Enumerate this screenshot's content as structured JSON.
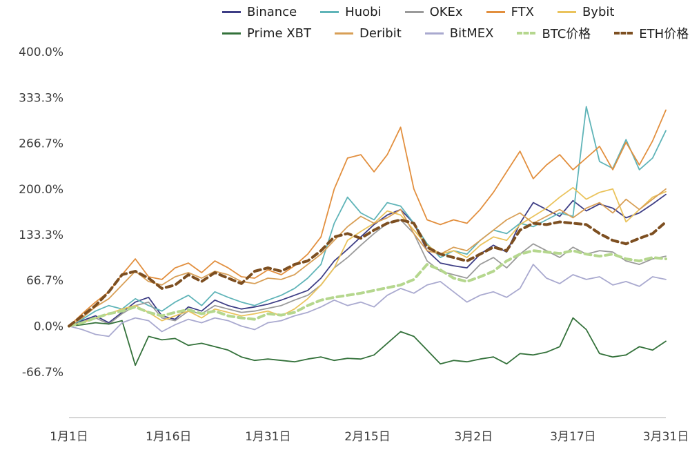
{
  "page": {
    "background": "#ffffff"
  },
  "chart_data": {
    "type": "line",
    "title": "",
    "xlabel": "",
    "ylabel": "",
    "grid": false,
    "legend_position": "top",
    "x_axis": {
      "tick_days": [
        0,
        15,
        30,
        45,
        61,
        76,
        90
      ],
      "tick_labels": [
        "1月1日",
        "1月16日",
        "1月31日",
        "2月15日",
        "3月2日",
        "3月17日",
        "3月31日"
      ],
      "xlim": [
        0,
        90
      ]
    },
    "y_axis": {
      "ticks": [
        400,
        333.3,
        266.7,
        200,
        133.3,
        66.7,
        0,
        -66.7
      ],
      "tick_labels": [
        "400.0%",
        "333.3%",
        "266.7%",
        "200.0%",
        "133.3%",
        "66.7%",
        "0.0%",
        "-66.7%"
      ],
      "ylim": [
        -133.3,
        400
      ],
      "unit": "%"
    },
    "x_days": [
      0,
      2,
      4,
      6,
      8,
      10,
      12,
      14,
      16,
      18,
      20,
      22,
      24,
      26,
      28,
      30,
      32,
      34,
      36,
      38,
      40,
      42,
      44,
      46,
      48,
      50,
      52,
      54,
      56,
      58,
      60,
      62,
      64,
      66,
      68,
      70,
      72,
      74,
      76,
      78,
      80,
      82,
      84,
      86,
      88,
      90
    ],
    "series": [
      {
        "name": "Binance",
        "color": "#3d3d85",
        "dashed": false,
        "values": [
          0,
          8,
          15,
          5,
          20,
          35,
          42,
          15,
          10,
          28,
          22,
          38,
          30,
          25,
          28,
          32,
          38,
          45,
          52,
          70,
          95,
          112,
          130,
          148,
          162,
          170,
          150,
          110,
          92,
          88,
          85,
          105,
          118,
          108,
          150,
          180,
          170,
          160,
          183,
          168,
          178,
          172,
          158,
          165,
          178,
          192
        ]
      },
      {
        "name": "Huobi",
        "color": "#5fb4b8",
        "dashed": false,
        "values": [
          0,
          10,
          22,
          30,
          25,
          40,
          30,
          22,
          35,
          45,
          30,
          50,
          42,
          35,
          30,
          38,
          45,
          55,
          70,
          90,
          150,
          188,
          165,
          155,
          180,
          175,
          150,
          120,
          100,
          110,
          105,
          125,
          140,
          135,
          150,
          145,
          155,
          165,
          160,
          320,
          240,
          230,
          272,
          228,
          245,
          285
        ]
      },
      {
        "name": "OKEx",
        "color": "#9a9a9a",
        "dashed": false,
        "values": [
          0,
          6,
          12,
          3,
          18,
          30,
          35,
          12,
          8,
          22,
          18,
          30,
          25,
          20,
          22,
          26,
          30,
          38,
          45,
          60,
          85,
          100,
          118,
          135,
          150,
          155,
          135,
          95,
          80,
          75,
          70,
          90,
          100,
          85,
          105,
          120,
          110,
          100,
          115,
          105,
          110,
          108,
          95,
          90,
          98,
          102
        ]
      },
      {
        "name": "FTX",
        "color": "#e28f3e",
        "dashed": false,
        "values": [
          0,
          18,
          35,
          50,
          75,
          98,
          72,
          68,
          85,
          92,
          78,
          95,
          85,
          72,
          70,
          82,
          75,
          88,
          105,
          130,
          200,
          245,
          250,
          225,
          250,
          290,
          200,
          155,
          148,
          155,
          150,
          170,
          195,
          225,
          255,
          215,
          235,
          250,
          228,
          245,
          262,
          228,
          268,
          235,
          270,
          315
        ]
      },
      {
        "name": "Bybit",
        "color": "#eac35c",
        "dashed": false,
        "values": [
          0,
          5,
          12,
          18,
          25,
          30,
          20,
          8,
          15,
          22,
          12,
          25,
          20,
          15,
          18,
          22,
          15,
          25,
          40,
          60,
          85,
          125,
          138,
          150,
          168,
          162,
          140,
          118,
          105,
          110,
          100,
          118,
          130,
          125,
          148,
          160,
          172,
          188,
          202,
          185,
          195,
          200,
          152,
          170,
          188,
          196
        ]
      },
      {
        "name": "Prime XBT",
        "color": "#33713a",
        "dashed": false,
        "values": [
          0,
          2,
          5,
          3,
          8,
          -57,
          -15,
          -20,
          -18,
          -28,
          -25,
          -30,
          -35,
          -45,
          -50,
          -48,
          -50,
          -52,
          -48,
          -45,
          -50,
          -47,
          -48,
          -42,
          -25,
          -8,
          -15,
          -35,
          -55,
          -50,
          -52,
          -48,
          -45,
          -55,
          -40,
          -42,
          -38,
          -30,
          12,
          -5,
          -40,
          -45,
          -42,
          -30,
          -35,
          -22
        ]
      },
      {
        "name": "Deribit",
        "color": "#d89f56",
        "dashed": false,
        "values": [
          0,
          12,
          28,
          40,
          60,
          80,
          65,
          60,
          72,
          78,
          70,
          80,
          75,
          65,
          62,
          70,
          68,
          75,
          90,
          105,
          125,
          145,
          160,
          150,
          158,
          170,
          135,
          110,
          105,
          115,
          110,
          125,
          140,
          155,
          165,
          150,
          160,
          170,
          158,
          172,
          180,
          165,
          185,
          170,
          185,
          200
        ]
      },
      {
        "name": "BitMEX",
        "color": "#a9a9cf",
        "dashed": false,
        "values": [
          0,
          -5,
          -12,
          -15,
          5,
          12,
          8,
          -8,
          2,
          10,
          5,
          12,
          8,
          0,
          -5,
          5,
          8,
          15,
          20,
          28,
          38,
          30,
          35,
          28,
          45,
          55,
          48,
          60,
          65,
          50,
          35,
          45,
          50,
          42,
          55,
          90,
          70,
          62,
          75,
          68,
          72,
          60,
          65,
          58,
          72,
          68
        ]
      },
      {
        "name": "BTC价格",
        "color": "#b5d78e",
        "dashed": true,
        "values": [
          0,
          5,
          12,
          18,
          22,
          28,
          20,
          15,
          20,
          24,
          18,
          22,
          15,
          12,
          10,
          18,
          16,
          20,
          30,
          38,
          42,
          45,
          48,
          52,
          56,
          60,
          68,
          90,
          82,
          70,
          65,
          72,
          80,
          95,
          105,
          110,
          108,
          106,
          110,
          105,
          102,
          105,
          98,
          95,
          100,
          98
        ]
      },
      {
        "name": "ETH价格",
        "color": "#7d4f21",
        "dashed": true,
        "values": [
          0,
          15,
          30,
          50,
          75,
          80,
          70,
          55,
          60,
          75,
          65,
          78,
          70,
          62,
          80,
          85,
          80,
          90,
          95,
          110,
          130,
          135,
          128,
          140,
          150,
          155,
          150,
          115,
          105,
          100,
          95,
          105,
          115,
          110,
          140,
          150,
          148,
          152,
          150,
          148,
          135,
          125,
          120,
          128,
          135,
          152
        ]
      }
    ]
  }
}
